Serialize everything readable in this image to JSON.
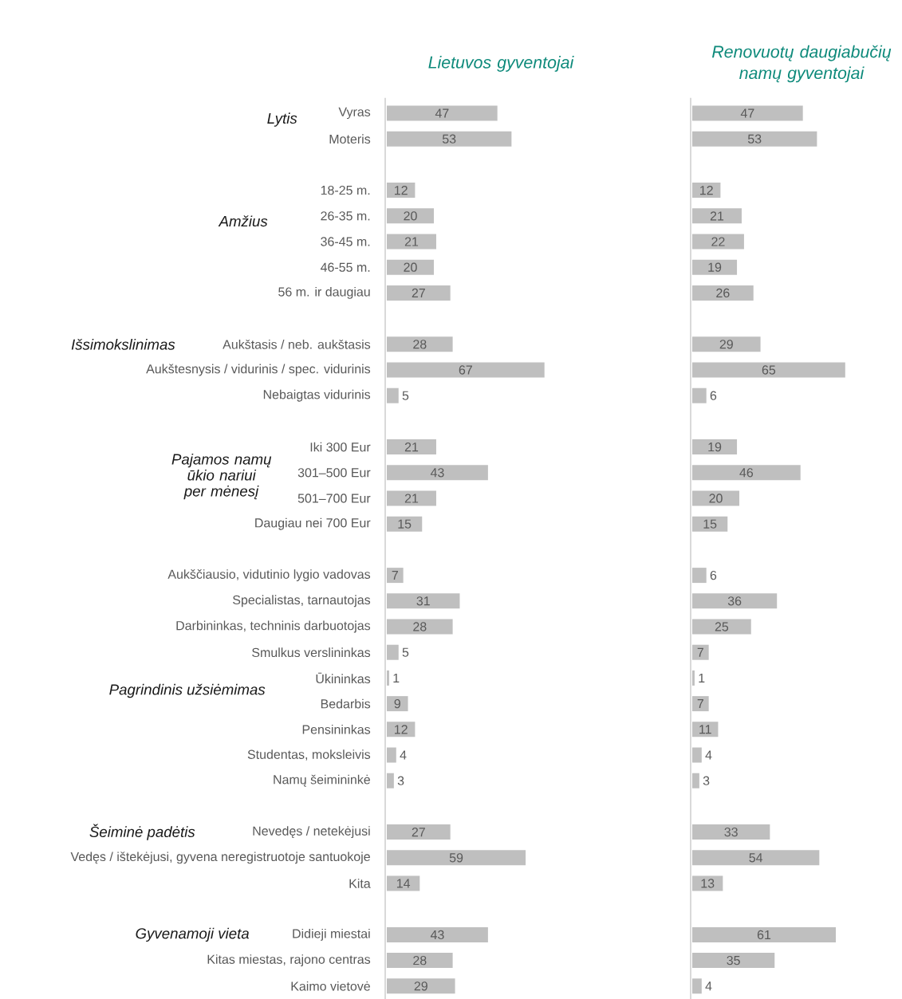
{
  "chart_data": [
    {
      "type": "bar",
      "orientation": "horizontal",
      "title": "Lietuvos gyventojai",
      "color": "#bfbfbf",
      "data_labels": true,
      "categories": [
        "Vyras",
        "Moteris",
        null,
        "18-25 m.",
        "26-35 m.",
        "36-45 m.",
        "46-55 m.",
        "56 m. ir daugiau",
        null,
        "Aukštasis / neb. aukštasis",
        "Aukštesnysis / vidurinis / spec. vidurinis",
        "Nebaigtas vidurinis",
        null,
        "Iki 300 Eur",
        "301–500 Eur",
        "501–700 Eur",
        "Daugiau nei 700 Eur",
        null,
        "Aukščiausio, vidutinio lygio vadovas",
        "Specialistas, tarnautojas",
        "Darbininkas, techninis darbuotojas",
        "Smulkus verslininkas",
        "Ūkininkas",
        "Bedarbis",
        "Pensininkas",
        "Studentas, moksleivis",
        "Namų šeimininkė",
        null,
        "Nevedęs / netekėjusi",
        "Vedęs / ištekėjusi, gyvena neregistruotoje santuokoje",
        "Kita",
        null,
        "Didieji miestai",
        "Kitas miestas, rajono centras",
        "Kaimo vietovė"
      ],
      "values": [
        47,
        53,
        null,
        12,
        20,
        21,
        20,
        27,
        null,
        28,
        67,
        5,
        null,
        21,
        43,
        21,
        15,
        null,
        7,
        31,
        28,
        5,
        1,
        9,
        12,
        4,
        3,
        null,
        27,
        59,
        14,
        null,
        43,
        28,
        29
      ],
      "annotations": [
        "*Lytis*",
        "*Amžius*",
        "*Išsimokslinimas*",
        "*Pajamos namų ūkio nariui per mėnesį*",
        "*Pagrindinis užsiėmimas*",
        "*Šeiminė padėtis*",
        "*Gyvenamoji vieta*"
      ]
    },
    {
      "type": "bar",
      "orientation": "horizontal",
      "title": "Renovuotų daugiabučių namų gyventojai",
      "color": "#bfbfbf",
      "data_labels": true,
      "values": [
        47,
        53,
        null,
        12,
        21,
        22,
        19,
        26,
        null,
        29,
        65,
        6,
        null,
        19,
        46,
        20,
        15,
        null,
        6,
        36,
        25,
        7,
        1,
        7,
        11,
        4,
        3,
        null,
        33,
        54,
        13,
        null,
        61,
        35,
        4
      ]
    }
  ]
}
